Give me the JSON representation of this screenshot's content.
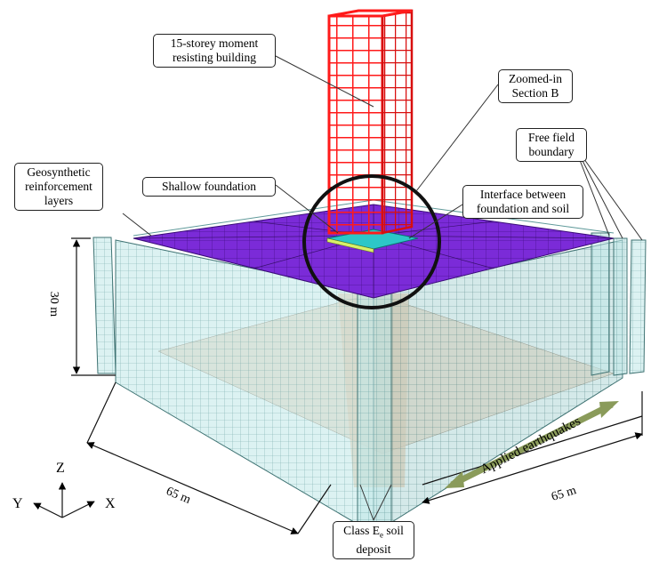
{
  "callouts": {
    "building": [
      "15-storey moment",
      "resisting building"
    ],
    "zoom": [
      "Zoomed-in",
      "Section B"
    ],
    "free_field": [
      "Free field",
      "boundary"
    ],
    "geosynthetic": [
      "Geosynthetic",
      "reinforcement",
      "layers"
    ],
    "foundation": "Shallow foundation",
    "interface": [
      "Interface between",
      "foundation and soil"
    ],
    "soil_prefix": "Class E",
    "soil_sub": "e",
    "soil_suffix": " soil",
    "soil_line2": "deposit"
  },
  "dimensions": {
    "depth": "30 m",
    "width_left": "65 m",
    "width_right": "65 m"
  },
  "earthquake_label": "Applied earthquakes",
  "axes": {
    "z": "Z",
    "y": "Y",
    "x": "X"
  },
  "colors": {
    "building": "#ff1a1a",
    "reinforcement": "#7a22d6",
    "soil_mesh": "#a9dede",
    "soil_section": "#f1c7a5",
    "arrow": "#8a9b5a",
    "foundation": "#2dc7c7"
  }
}
